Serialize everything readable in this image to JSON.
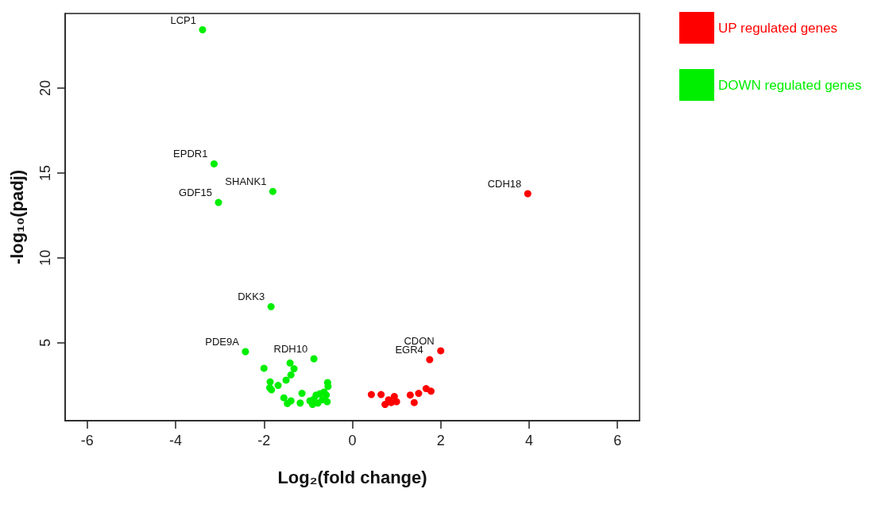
{
  "chart_data": {
    "type": "scatter",
    "xlabel": "Log₂(fold change)",
    "ylabel": "-log₁₀(padj)",
    "xlim": [
      -6.5,
      6.5
    ],
    "ylim": [
      0.4,
      24.4
    ],
    "xticks": [
      -6,
      -4,
      -2,
      0,
      2,
      4,
      6
    ],
    "yticks": [
      5,
      10,
      15,
      20
    ],
    "grid": false,
    "legend": "top right",
    "marker": "circle",
    "series": [
      {
        "name": "UP regulated genes",
        "color": "#ff0000",
        "x": [
          3.97,
          2.0,
          1.75,
          0.43,
          0.65,
          0.82,
          0.74,
          0.88,
          0.95,
          1.0,
          1.31,
          1.4,
          1.5,
          1.67,
          1.78
        ],
        "values": [
          13.78,
          4.52,
          4.0,
          1.94,
          1.94,
          1.63,
          1.36,
          1.47,
          1.83,
          1.52,
          1.91,
          1.47,
          2.01,
          2.29,
          2.14
        ]
      },
      {
        "name": "DOWN regulated genes",
        "color": "#00ee00",
        "x": [
          -3.39,
          -3.13,
          -1.8,
          -3.03,
          -1.84,
          -2.42,
          -0.87,
          -2.0,
          -1.41,
          -1.32,
          -1.39,
          -1.5,
          -1.86,
          -1.87,
          -1.83,
          -1.68,
          -1.55,
          -1.47,
          -1.39,
          -1.18,
          -1.14,
          -0.56,
          -0.55,
          -0.96,
          -0.87,
          -0.82,
          -0.73,
          -0.64,
          -0.9,
          -0.78,
          -0.68,
          -0.57,
          -0.59
        ],
        "values": [
          23.44,
          15.54,
          13.91,
          13.26,
          7.12,
          4.47,
          4.05,
          3.49,
          3.8,
          3.46,
          3.1,
          2.79,
          2.69,
          2.34,
          2.22,
          2.48,
          1.75,
          1.41,
          1.57,
          1.44,
          2.01,
          2.65,
          2.42,
          1.57,
          1.67,
          1.91,
          1.99,
          2.09,
          1.36,
          1.44,
          1.63,
          1.52,
          1.91
        ]
      }
    ],
    "annotations": [
      {
        "text": "LCP1",
        "x": -3.39,
        "y": 23.44
      },
      {
        "text": "EPDR1",
        "x": -3.13,
        "y": 15.54
      },
      {
        "text": "SHANK1",
        "x": -1.8,
        "y": 13.91
      },
      {
        "text": "GDF15",
        "x": -3.03,
        "y": 13.26
      },
      {
        "text": "CDH18",
        "x": 3.97,
        "y": 13.78
      },
      {
        "text": "DKK3",
        "x": -1.84,
        "y": 7.12
      },
      {
        "text": "PDE9A",
        "x": -2.42,
        "y": 4.47
      },
      {
        "text": "RDH10",
        "x": -0.87,
        "y": 4.05
      },
      {
        "text": "CDON",
        "x": 2.0,
        "y": 4.52
      },
      {
        "text": "EGR4",
        "x": 1.75,
        "y": 4.0
      }
    ]
  }
}
